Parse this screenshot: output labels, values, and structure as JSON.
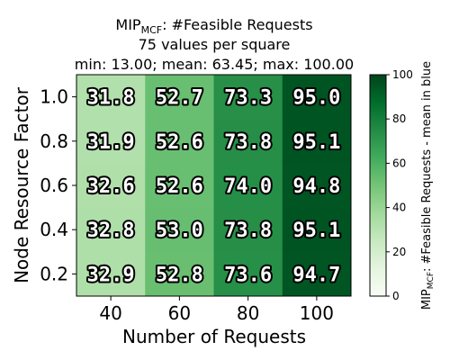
{
  "chart_data": {
    "type": "heatmap",
    "title": {
      "main": "MIP",
      "main_sub": "MCF",
      "main_suffix": ": #Feasible Requests",
      "line2": "75 values per square",
      "line3": "min: 13.00; mean: 63.45; max: 100.00"
    },
    "xlabel": "Number of Requests",
    "ylabel": "Node Resource Factor",
    "x_categories": [
      "40",
      "60",
      "80",
      "100"
    ],
    "y_categories": [
      "1.0",
      "0.8",
      "0.6",
      "0.4",
      "0.2"
    ],
    "values": [
      [
        31.8,
        52.7,
        73.3,
        95.0
      ],
      [
        31.9,
        52.6,
        73.8,
        95.1
      ],
      [
        32.6,
        52.6,
        74.0,
        94.8
      ],
      [
        32.8,
        53.0,
        73.8,
        95.1
      ],
      [
        32.9,
        52.8,
        73.6,
        94.7
      ]
    ],
    "value_labels": [
      [
        "31.8",
        "52.7",
        "73.3",
        "95.0"
      ],
      [
        "31.9",
        "52.6",
        "73.8",
        "95.1"
      ],
      [
        "32.6",
        "52.6",
        "74.0",
        "94.8"
      ],
      [
        "32.8",
        "53.0",
        "73.8",
        "95.1"
      ],
      [
        "32.9",
        "52.8",
        "73.6",
        "94.7"
      ]
    ],
    "colorbar": {
      "label_main": "MIP",
      "label_sub": "MCF",
      "label_suffix": ": #Feasible Requests - mean in blue",
      "range": [
        0,
        100
      ],
      "ticks": [
        "0",
        "20",
        "40",
        "60",
        "80",
        "100"
      ],
      "tick_values": [
        0,
        20,
        40,
        60,
        80,
        100
      ]
    },
    "colormap": "Greens",
    "colormap_stops": [
      "#f7fcf5",
      "#e5f5e0",
      "#c7e9c0",
      "#a1d99b",
      "#74c476",
      "#41ab5d",
      "#238b45",
      "#006d2c",
      "#00441b"
    ],
    "grid": false
  }
}
